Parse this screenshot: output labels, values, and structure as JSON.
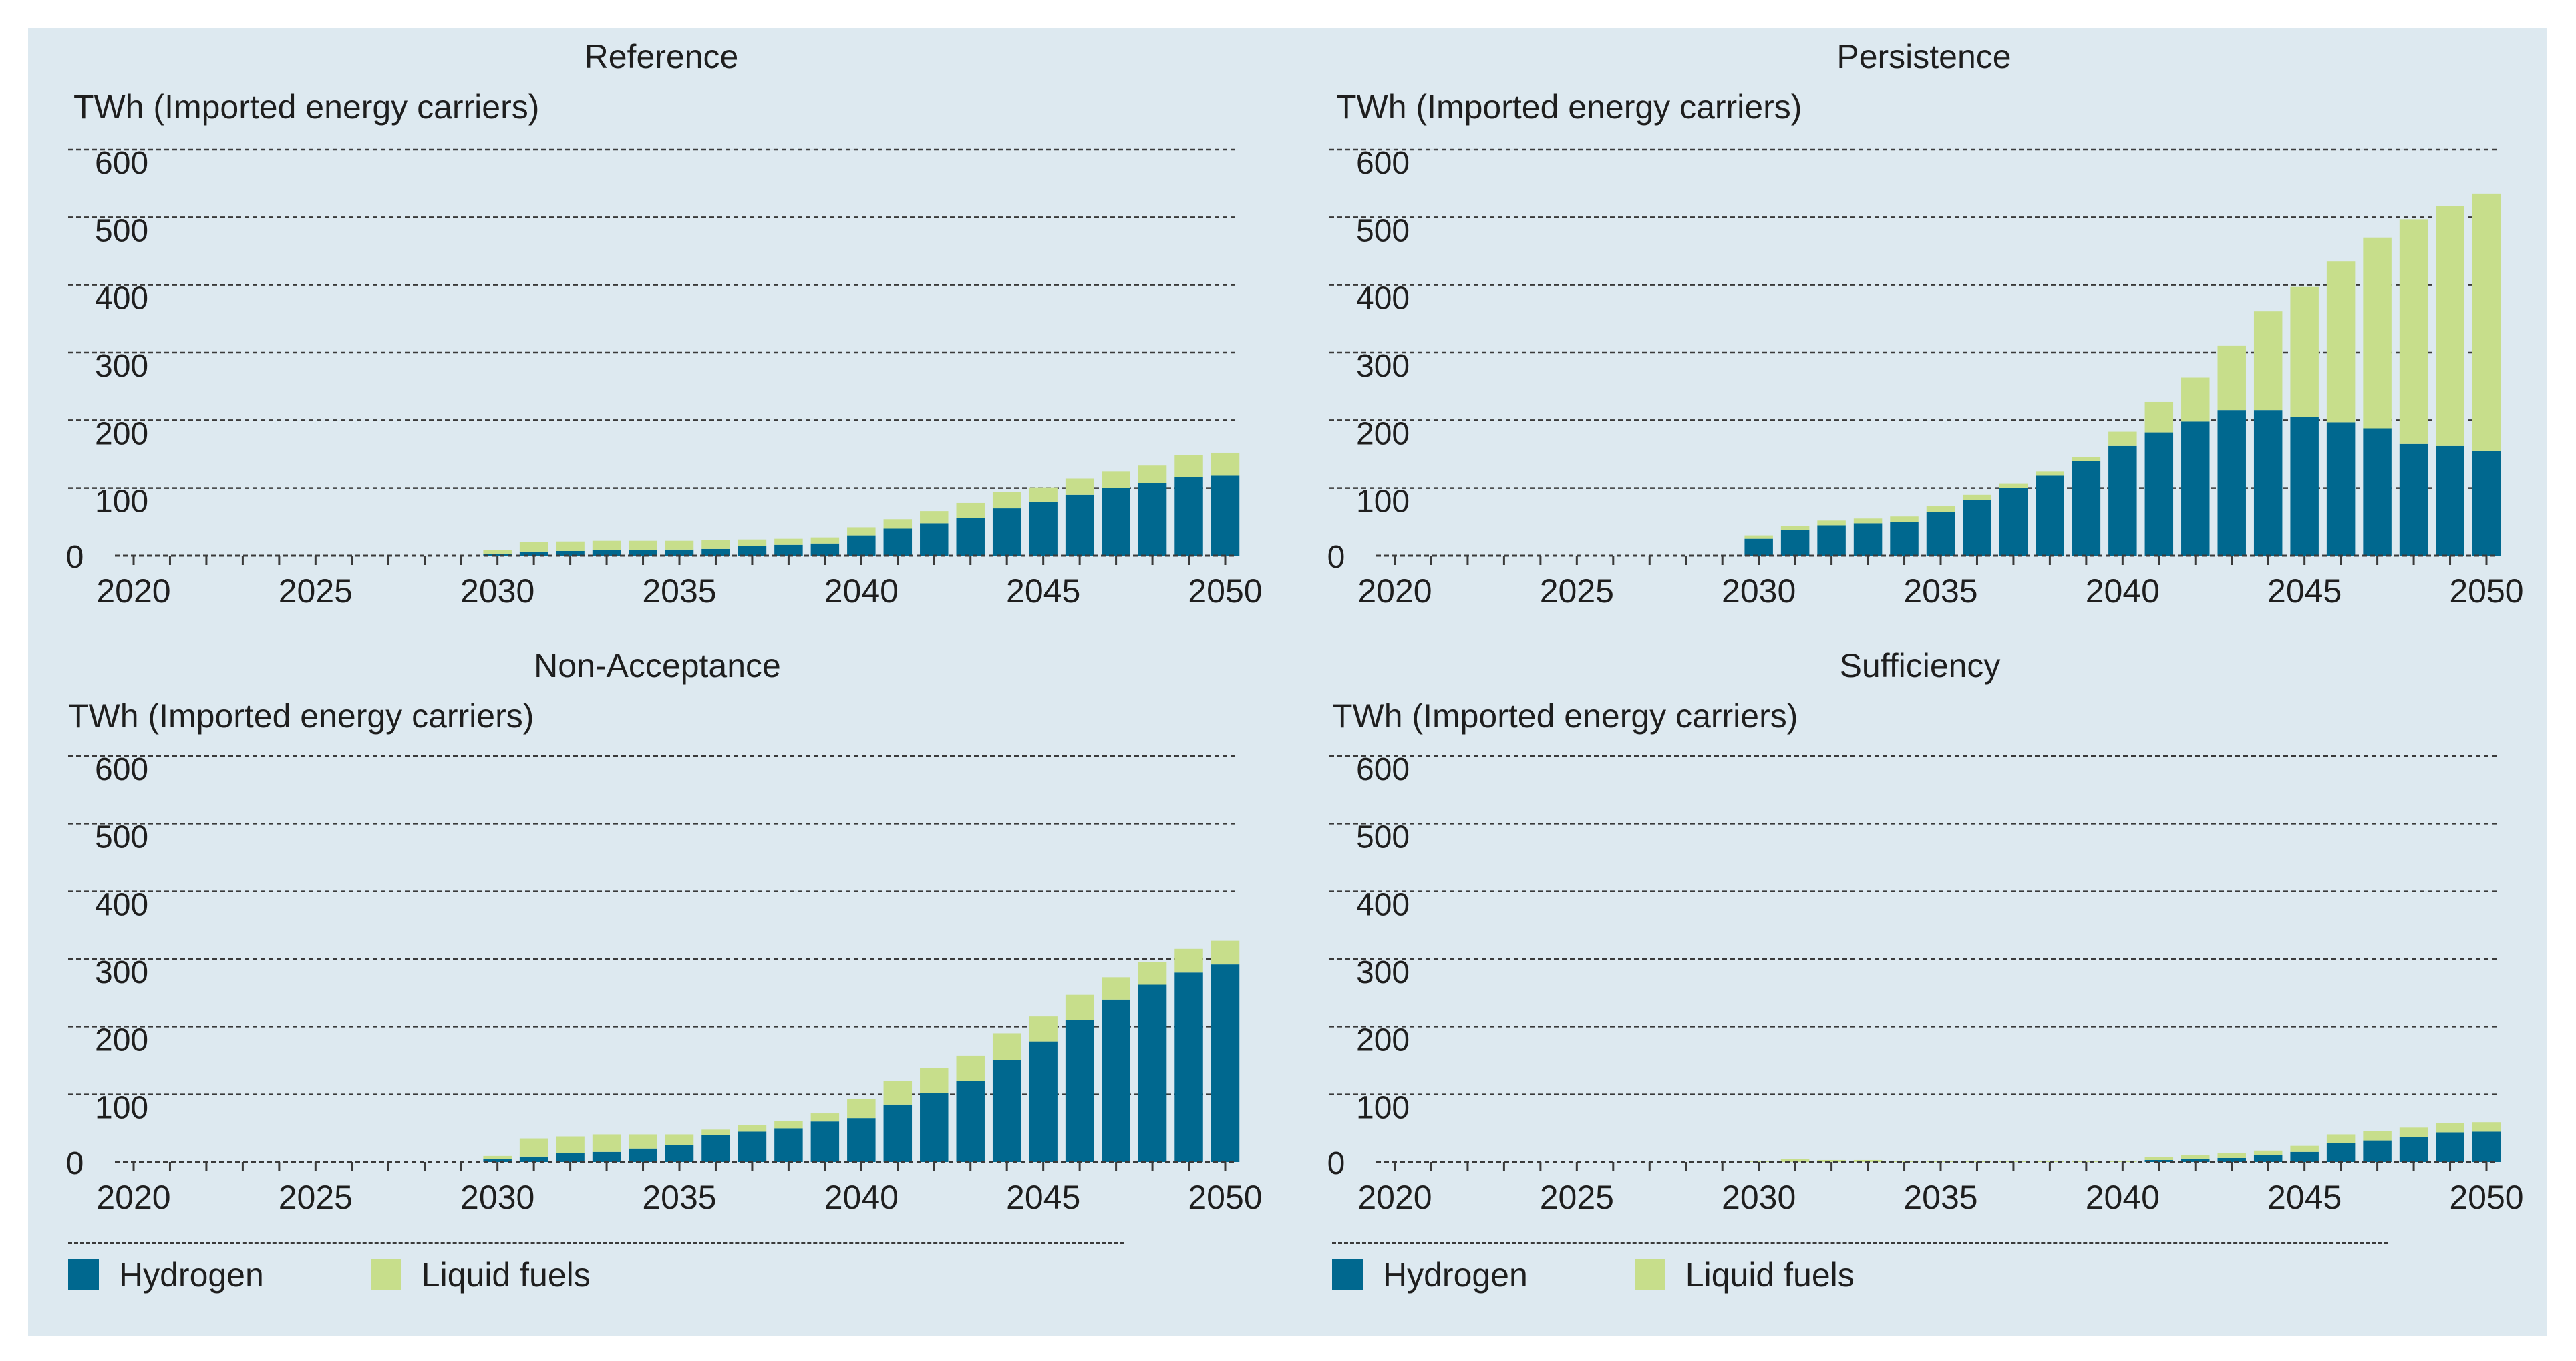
{
  "chart_data": [
    {
      "type": "bar",
      "stacked": true,
      "title": "Reference",
      "ylabel": "TWh (Imported energy carriers)",
      "xlabel": "",
      "ylim": [
        0,
        600
      ],
      "yticks": [
        0,
        100,
        200,
        300,
        400,
        500,
        600
      ],
      "xticks": [
        2020,
        2025,
        2030,
        2035,
        2040,
        2045,
        2050
      ],
      "categories": [
        2020,
        2021,
        2022,
        2023,
        2024,
        2025,
        2026,
        2027,
        2028,
        2029,
        2030,
        2031,
        2032,
        2033,
        2034,
        2035,
        2036,
        2037,
        2038,
        2039,
        2040,
        2041,
        2042,
        2043,
        2044,
        2045,
        2046,
        2047,
        2048,
        2049,
        2050
      ],
      "series": [
        {
          "name": "Hydrogen",
          "values": [
            0,
            0,
            0,
            0,
            0,
            0,
            0,
            0,
            0,
            0,
            3,
            6,
            7,
            8,
            8,
            9,
            10,
            14,
            16,
            18,
            30,
            40,
            48,
            56,
            70,
            80,
            90,
            100,
            107,
            116,
            118
          ]
        },
        {
          "name": "Liquid fuels",
          "values": [
            0,
            0,
            0,
            0,
            0,
            0,
            0,
            0,
            0,
            0,
            5,
            14,
            14,
            14,
            14,
            13,
            13,
            10,
            9,
            9,
            12,
            14,
            18,
            22,
            24,
            21,
            24,
            24,
            26,
            33,
            34
          ]
        }
      ]
    },
    {
      "type": "bar",
      "stacked": true,
      "title": "Persistence",
      "ylabel": "TWh (Imported energy carriers)",
      "xlabel": "",
      "ylim": [
        0,
        600
      ],
      "yticks": [
        0,
        100,
        200,
        300,
        400,
        500,
        600
      ],
      "xticks": [
        2020,
        2025,
        2030,
        2035,
        2040,
        2045,
        2050
      ],
      "categories": [
        2020,
        2021,
        2022,
        2023,
        2024,
        2025,
        2026,
        2027,
        2028,
        2029,
        2030,
        2031,
        2032,
        2033,
        2034,
        2035,
        2036,
        2037,
        2038,
        2039,
        2040,
        2041,
        2042,
        2043,
        2044,
        2045,
        2046,
        2047,
        2048,
        2049,
        2050
      ],
      "series": [
        {
          "name": "Hydrogen",
          "values": [
            0,
            0,
            0,
            0,
            0,
            0,
            0,
            0,
            0,
            0,
            25,
            38,
            45,
            48,
            50,
            65,
            82,
            100,
            118,
            140,
            162,
            182,
            198,
            215,
            215,
            205,
            197,
            188,
            165,
            162,
            155
          ]
        },
        {
          "name": "Liquid fuels",
          "values": [
            0,
            0,
            0,
            0,
            0,
            0,
            0,
            0,
            0,
            0,
            5,
            6,
            7,
            7,
            8,
            8,
            8,
            6,
            6,
            6,
            21,
            45,
            65,
            95,
            146,
            192,
            238,
            282,
            332,
            355,
            380
          ]
        }
      ]
    },
    {
      "type": "bar",
      "stacked": true,
      "title": "Non-Acceptance",
      "ylabel": "TWh  (Imported energy carriers)",
      "xlabel": "",
      "ylim": [
        0,
        600
      ],
      "yticks": [
        0,
        100,
        200,
        300,
        400,
        500,
        600
      ],
      "xticks": [
        2020,
        2025,
        2030,
        2035,
        2040,
        2045,
        2050
      ],
      "categories": [
        2020,
        2021,
        2022,
        2023,
        2024,
        2025,
        2026,
        2027,
        2028,
        2029,
        2030,
        2031,
        2032,
        2033,
        2034,
        2035,
        2036,
        2037,
        2038,
        2039,
        2040,
        2041,
        2042,
        2043,
        2044,
        2045,
        2046,
        2047,
        2048,
        2049,
        2050
      ],
      "series": [
        {
          "name": "Hydrogen",
          "values": [
            0,
            0,
            0,
            0,
            0,
            0,
            0,
            0,
            0,
            0,
            4,
            8,
            13,
            15,
            20,
            25,
            40,
            45,
            50,
            60,
            65,
            85,
            102,
            120,
            150,
            178,
            210,
            240,
            262,
            280,
            292
          ]
        },
        {
          "name": "Liquid fuels",
          "values": [
            0,
            0,
            0,
            0,
            0,
            0,
            0,
            0,
            0,
            0,
            5,
            27,
            25,
            26,
            21,
            16,
            8,
            10,
            11,
            12,
            28,
            35,
            37,
            37,
            40,
            37,
            37,
            33,
            34,
            35,
            35
          ]
        }
      ]
    },
    {
      "type": "bar",
      "stacked": true,
      "title": "Sufficiency",
      "ylabel": "TWh  (Imported energy carriers)",
      "xlabel": "",
      "ylim": [
        0,
        600
      ],
      "yticks": [
        0,
        100,
        200,
        300,
        400,
        500,
        600
      ],
      "xticks": [
        2020,
        2025,
        2030,
        2035,
        2040,
        2045,
        2050
      ],
      "categories": [
        2020,
        2021,
        2022,
        2023,
        2024,
        2025,
        2026,
        2027,
        2028,
        2029,
        2030,
        2031,
        2032,
        2033,
        2034,
        2035,
        2036,
        2037,
        2038,
        2039,
        2040,
        2041,
        2042,
        2043,
        2044,
        2045,
        2046,
        2047,
        2048,
        2049,
        2050
      ],
      "series": [
        {
          "name": "Hydrogen",
          "values": [
            0,
            0,
            0,
            0,
            0,
            0,
            0,
            0,
            0,
            0,
            0,
            0,
            0,
            0,
            0,
            0,
            0,
            0,
            0,
            0,
            0,
            3,
            5,
            6,
            10,
            15,
            28,
            32,
            37,
            44,
            45
          ]
        },
        {
          "name": "Liquid fuels",
          "values": [
            0,
            0,
            0,
            0,
            0,
            0,
            0,
            0,
            0,
            0,
            2,
            4,
            3,
            3,
            2,
            2,
            2,
            2,
            2,
            2,
            2,
            4,
            5,
            7,
            7,
            9,
            13,
            14,
            14,
            14,
            14
          ]
        }
      ]
    }
  ],
  "legend": [
    {
      "label": "Hydrogen",
      "color": "#00688f"
    },
    {
      "label": "Liquid fuels",
      "color": "#c7de8b"
    }
  ]
}
